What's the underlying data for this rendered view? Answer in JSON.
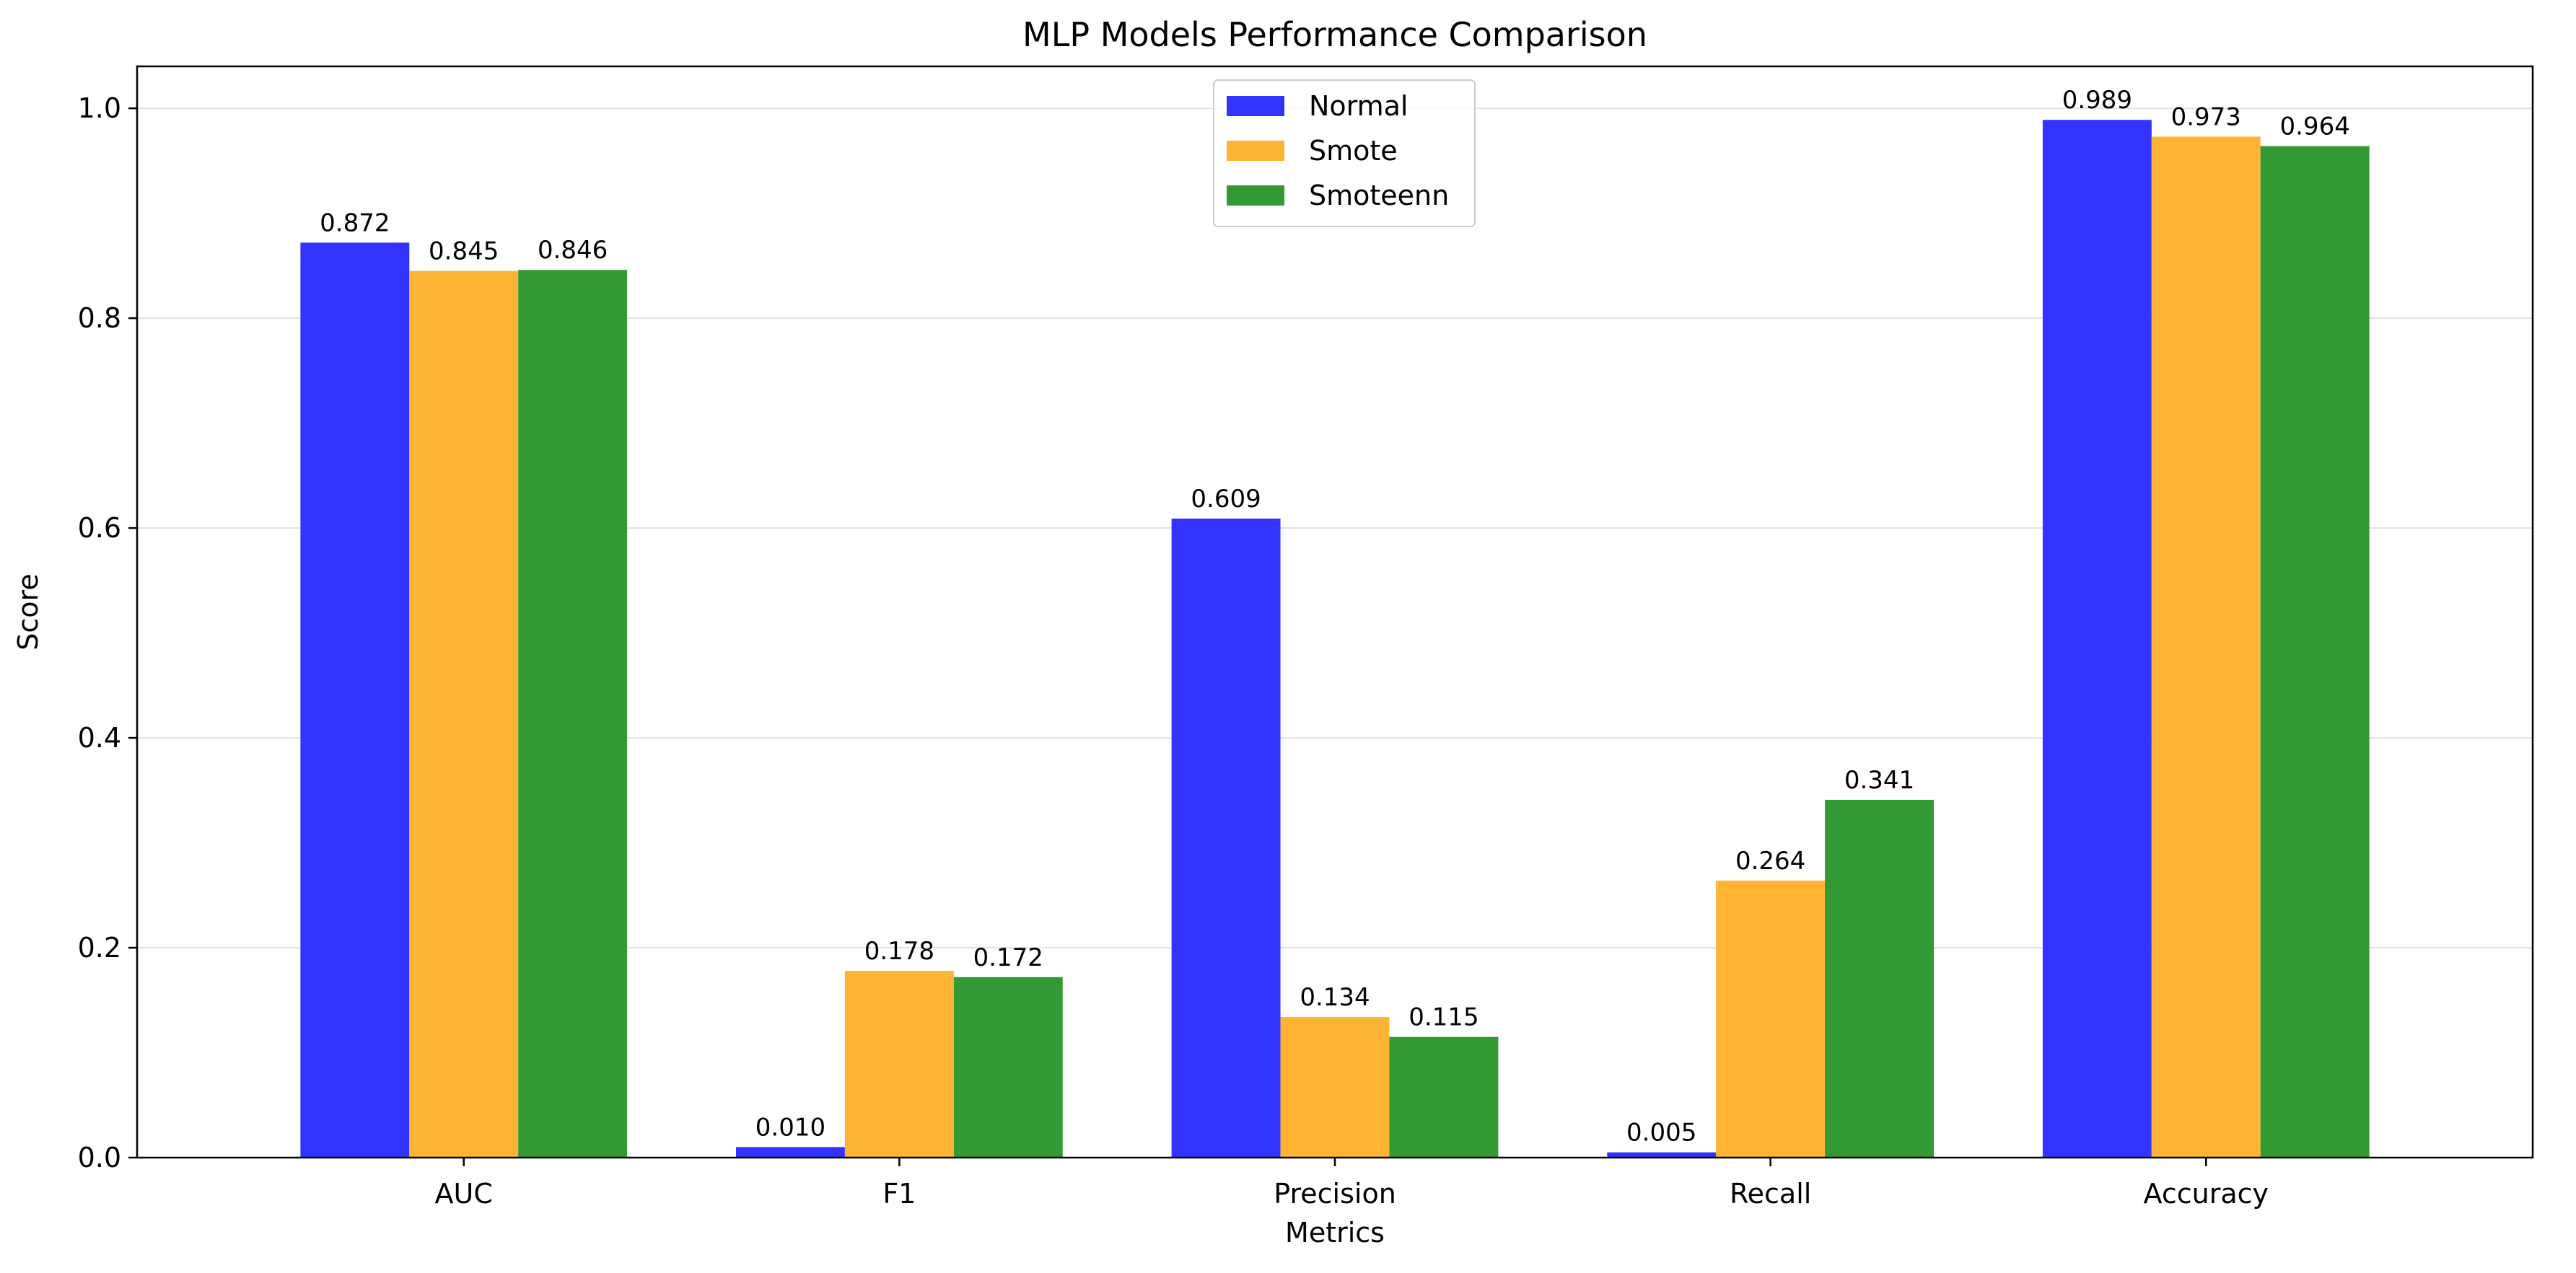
{
  "chart_data": {
    "type": "bar",
    "title": "MLP Models Performance Comparison",
    "xlabel": "Metrics",
    "ylabel": "Score",
    "categories": [
      "AUC",
      "F1",
      "Precision",
      "Recall",
      "Accuracy"
    ],
    "series": [
      {
        "name": "Normal",
        "color": "#3333ff",
        "values": [
          0.872,
          0.01,
          0.609,
          0.005,
          0.989
        ],
        "labels": [
          "0.872",
          "0.010",
          "0.609",
          "0.005",
          "0.989"
        ]
      },
      {
        "name": "Smote",
        "color": "#ffb333",
        "values": [
          0.845,
          0.178,
          0.134,
          0.264,
          0.973
        ],
        "labels": [
          "0.845",
          "0.178",
          "0.134",
          "0.264",
          "0.973"
        ]
      },
      {
        "name": "Smoteenn",
        "color": "#339933",
        "values": [
          0.846,
          0.172,
          0.115,
          0.341,
          0.964
        ],
        "labels": [
          "0.846",
          "0.172",
          "0.115",
          "0.341",
          "0.964"
        ]
      }
    ],
    "ylim": [
      0,
      1.04
    ],
    "yticks": [
      0.0,
      0.2,
      0.4,
      0.6,
      0.8,
      1.0
    ],
    "ytick_labels": [
      "0.0",
      "0.2",
      "0.4",
      "0.6",
      "0.8",
      "1.0"
    ],
    "grid": "horizontal",
    "legend_position": "top-center"
  }
}
